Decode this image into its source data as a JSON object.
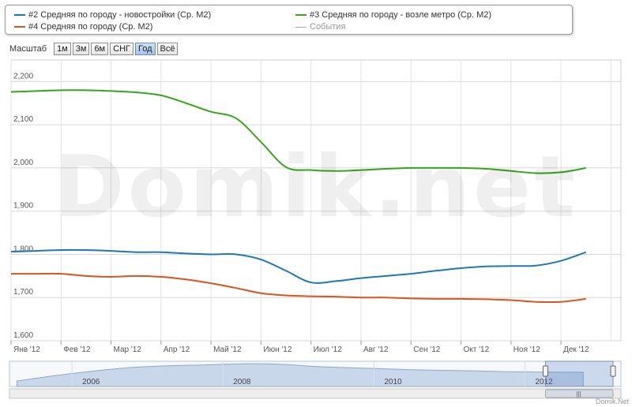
{
  "legend": {
    "items": [
      {
        "label": "#2 Средняя по городу - новостройки (Ср. М2)",
        "color": "#1f77b4"
      },
      {
        "label": "#3 Средняя по городу - возле метро (Ср. М2)",
        "color": "#35a51e"
      },
      {
        "label": "#4 Средняя по городу (Ср. М2)",
        "color": "#d9541e"
      },
      {
        "label": "События",
        "color": "#aaaaaa"
      }
    ]
  },
  "scale": {
    "label": "Масштаб",
    "buttons": [
      "1м",
      "3м",
      "6м",
      "СНГ",
      "Год",
      "Всё"
    ],
    "active": "Год"
  },
  "watermark": "Domik.net",
  "credit": "Domik.Net",
  "chart_data": {
    "type": "line",
    "x": [
      0,
      0.5,
      1,
      1.5,
      2,
      2.5,
      3,
      3.5,
      4,
      4.5,
      5,
      5.5,
      6,
      6.5,
      7,
      7.5,
      8,
      8.5,
      9,
      9.5,
      10,
      10.5,
      11,
      11.5
    ],
    "x_tick_labels": [
      "Янв '12",
      "Фев '12",
      "Мар '12",
      "Апр '12",
      "Май '12",
      "Июн '12",
      "Июл '12",
      "Авг '12",
      "Сен '12",
      "Окт '12",
      "Ноя '12",
      "Дек '12"
    ],
    "ylim": [
      1600,
      2250
    ],
    "y_ticks": [
      1600,
      1700,
      1800,
      1900,
      2000,
      2100,
      2200
    ],
    "y_tick_labels": [
      "1,600",
      "1,700",
      "1,800",
      "1,900",
      "2,000",
      "2,100",
      "2,200"
    ],
    "grid": true,
    "series": [
      {
        "name": "#2 Средняя по городу - новостройки (Ср. М2)",
        "color": "#1f77b4",
        "values": [
          1806,
          1808,
          1810,
          1810,
          1808,
          1805,
          1805,
          1802,
          1800,
          1800,
          1788,
          1762,
          1735,
          1738,
          1745,
          1750,
          1755,
          1762,
          1768,
          1772,
          1773,
          1774,
          1785,
          1805
        ]
      },
      {
        "name": "#3 Средняя по городу - возле метро (Ср. М2)",
        "color": "#35a51e",
        "values": [
          2176,
          2178,
          2180,
          2180,
          2178,
          2175,
          2168,
          2150,
          2130,
          2115,
          2060,
          2002,
          1995,
          1993,
          1995,
          1998,
          2000,
          2000,
          2000,
          1998,
          1993,
          1988,
          1990,
          2000
        ]
      },
      {
        "name": "#4 Средняя по городу (Ср. М2)",
        "color": "#d9541e",
        "values": [
          1755,
          1755,
          1755,
          1750,
          1748,
          1750,
          1748,
          1742,
          1733,
          1722,
          1710,
          1705,
          1703,
          1702,
          1700,
          1700,
          1698,
          1697,
          1697,
          1696,
          1694,
          1690,
          1690,
          1697
        ]
      }
    ],
    "navigator": {
      "year_labels": [
        "2006",
        "2008",
        "2010",
        "2012"
      ],
      "x": [
        2005,
        2005.5,
        2006,
        2006.5,
        2007,
        2007.5,
        2008,
        2008.5,
        2009,
        2009.5,
        2010,
        2010.5,
        2011,
        2011.5,
        2012,
        2012.5
      ],
      "values": [
        1300,
        1600,
        1850,
        2050,
        2150,
        2200,
        2260,
        2230,
        2100,
        2030,
        1960,
        1900,
        1870,
        1820,
        1800,
        1790
      ],
      "ylim": [
        1000,
        2400
      ],
      "year_ticks": [
        2006,
        2008,
        2010,
        2012
      ],
      "xlim": [
        2004.9,
        2013.0
      ],
      "window": [
        2012.0,
        2013.0
      ]
    }
  }
}
